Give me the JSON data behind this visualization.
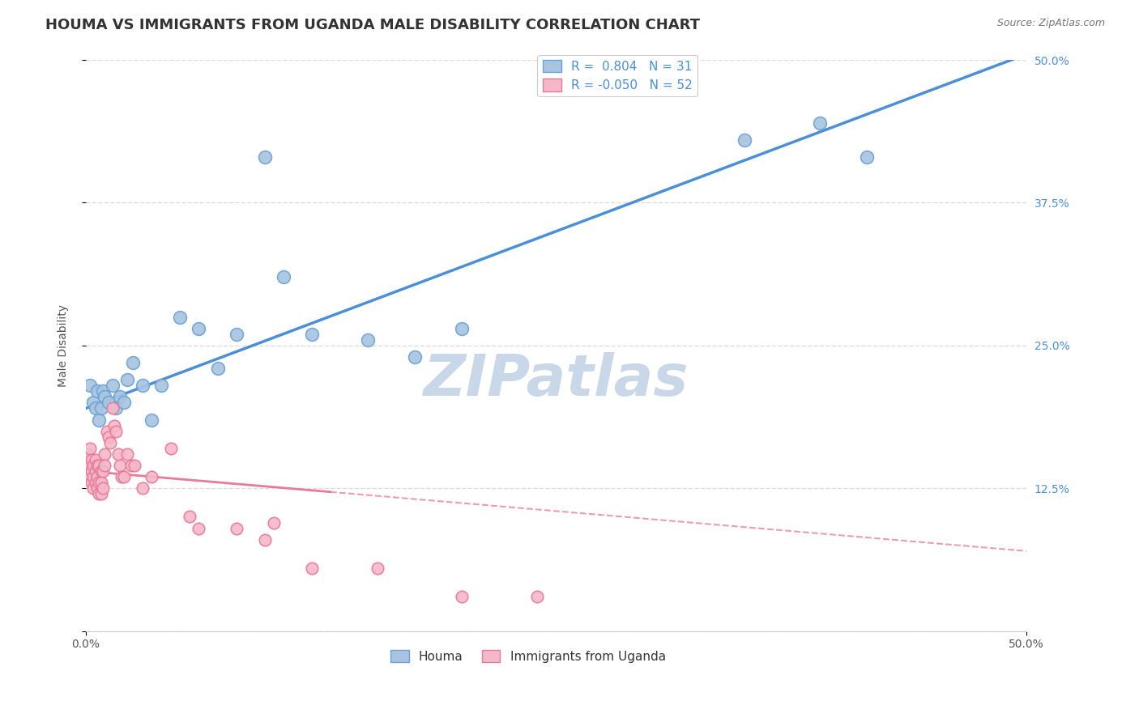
{
  "title": "HOUMA VS IMMIGRANTS FROM UGANDA MALE DISABILITY CORRELATION CHART",
  "source": "Source: ZipAtlas.com",
  "ylabel": "Male Disability",
  "x_min": 0.0,
  "x_max": 0.5,
  "y_min": 0.0,
  "y_max": 0.5,
  "y_tick_labels_right": [
    "50.0%",
    "37.5%",
    "25.0%",
    "12.5%",
    ""
  ],
  "y_ticks_right": [
    0.5,
    0.375,
    0.25,
    0.125,
    0.0
  ],
  "houma_color": "#a8c4e0",
  "houma_edge_color": "#6aa3d5",
  "uganda_color": "#f4b8c8",
  "uganda_edge_color": "#e87a9a",
  "trendline_houma_color": "#4a90d9",
  "trendline_uganda_color": "#e87a9a",
  "R_houma": 0.804,
  "N_houma": 31,
  "R_uganda": -0.05,
  "N_uganda": 52,
  "watermark": "ZIPatlas",
  "legend_label_houma": "Houma",
  "legend_label_uganda": "Immigrants from Uganda",
  "houma_trendline_start_y": 0.195,
  "houma_trendline_end_y": 0.505,
  "uganda_trendline_start_y": 0.14,
  "uganda_trendline_end_y": 0.07,
  "houma_x": [
    0.002,
    0.004,
    0.005,
    0.006,
    0.007,
    0.008,
    0.009,
    0.01,
    0.012,
    0.014,
    0.016,
    0.018,
    0.02,
    0.022,
    0.025,
    0.03,
    0.035,
    0.04,
    0.05,
    0.06,
    0.07,
    0.08,
    0.095,
    0.105,
    0.12,
    0.15,
    0.175,
    0.2,
    0.35,
    0.39,
    0.415
  ],
  "houma_y": [
    0.215,
    0.2,
    0.195,
    0.21,
    0.185,
    0.195,
    0.21,
    0.205,
    0.2,
    0.215,
    0.195,
    0.205,
    0.2,
    0.22,
    0.235,
    0.215,
    0.185,
    0.215,
    0.275,
    0.265,
    0.23,
    0.26,
    0.415,
    0.31,
    0.26,
    0.255,
    0.24,
    0.265,
    0.43,
    0.445,
    0.415
  ],
  "uganda_x": [
    0.001,
    0.001,
    0.002,
    0.002,
    0.002,
    0.003,
    0.003,
    0.003,
    0.004,
    0.004,
    0.004,
    0.005,
    0.005,
    0.005,
    0.006,
    0.006,
    0.006,
    0.007,
    0.007,
    0.007,
    0.008,
    0.008,
    0.008,
    0.009,
    0.009,
    0.01,
    0.01,
    0.011,
    0.012,
    0.013,
    0.014,
    0.015,
    0.016,
    0.017,
    0.018,
    0.019,
    0.02,
    0.022,
    0.024,
    0.026,
    0.03,
    0.035,
    0.045,
    0.055,
    0.06,
    0.08,
    0.095,
    0.1,
    0.12,
    0.155,
    0.2,
    0.24
  ],
  "uganda_y": [
    0.155,
    0.145,
    0.16,
    0.145,
    0.135,
    0.15,
    0.14,
    0.13,
    0.145,
    0.135,
    0.125,
    0.15,
    0.14,
    0.13,
    0.145,
    0.135,
    0.125,
    0.145,
    0.13,
    0.12,
    0.14,
    0.13,
    0.12,
    0.14,
    0.125,
    0.155,
    0.145,
    0.175,
    0.17,
    0.165,
    0.195,
    0.18,
    0.175,
    0.155,
    0.145,
    0.135,
    0.135,
    0.155,
    0.145,
    0.145,
    0.125,
    0.135,
    0.16,
    0.1,
    0.09,
    0.09,
    0.08,
    0.095,
    0.055,
    0.055,
    0.03,
    0.03
  ],
  "background_color": "#ffffff",
  "grid_color": "#dddddd",
  "title_fontsize": 13,
  "axis_label_fontsize": 10,
  "tick_fontsize": 10,
  "legend_fontsize": 11,
  "watermark_color": "#c8d8e8",
  "watermark_fontsize": 52
}
